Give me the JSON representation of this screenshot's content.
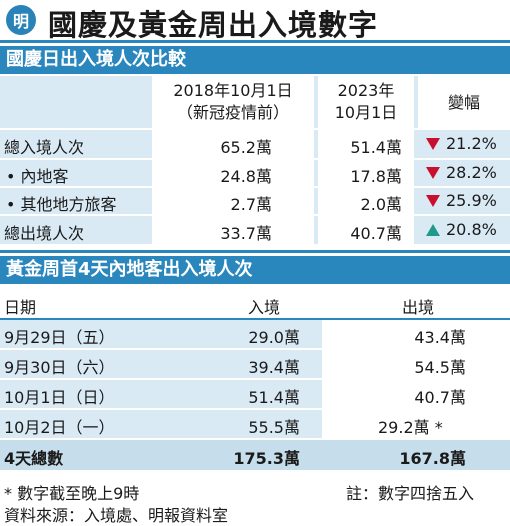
{
  "header": {
    "logo_text": "明",
    "title": "國慶及黃金周出入境數字"
  },
  "section1": {
    "title": "國慶日出入境人次比較",
    "col_2018_line1": "2018年10月1日",
    "col_2018_line2": "（新冠疫情前）",
    "col_2023_line1": "2023年",
    "col_2023_line2": "10月1日",
    "col_change": "變幅",
    "rows": [
      {
        "label": "總入境人次",
        "v2018": "65.2萬",
        "v2023": "51.4萬",
        "dir": "down",
        "change": "21.2%"
      },
      {
        "label": "• 內地客",
        "v2018": "24.8萬",
        "v2023": "17.8萬",
        "dir": "down",
        "change": "28.2%"
      },
      {
        "label": "• 其他地方旅客",
        "v2018": "2.7萬",
        "v2023": "2.0萬",
        "dir": "down",
        "change": "25.9%"
      },
      {
        "label": "總出境人次",
        "v2018": "33.7萬",
        "v2023": "40.7萬",
        "dir": "up",
        "change": "20.8%"
      }
    ]
  },
  "section2": {
    "title": "黃金周首4天內地客出入境人次",
    "col_date": "日期",
    "col_in": "入境",
    "col_out": "出境",
    "rows": [
      {
        "date": "9月29日（五）",
        "in": "29.0萬",
        "out": "43.4萬"
      },
      {
        "date": "9月30日（六）",
        "in": "39.4萬",
        "out": "54.5萬"
      },
      {
        "date": "10月1日（日）",
        "in": "51.4萬",
        "out": "40.7萬"
      },
      {
        "date": "10月2日（一）",
        "in": "55.5萬",
        "out": "29.2萬 *"
      }
    ],
    "total": {
      "label": "4天總數",
      "in": "175.3萬",
      "out": "167.8萬"
    }
  },
  "footer": {
    "note_left": "* 數字截至晚上9時",
    "note_right": "註：數字四捨五入",
    "source": "資料來源：入境處、明報資料室"
  }
}
